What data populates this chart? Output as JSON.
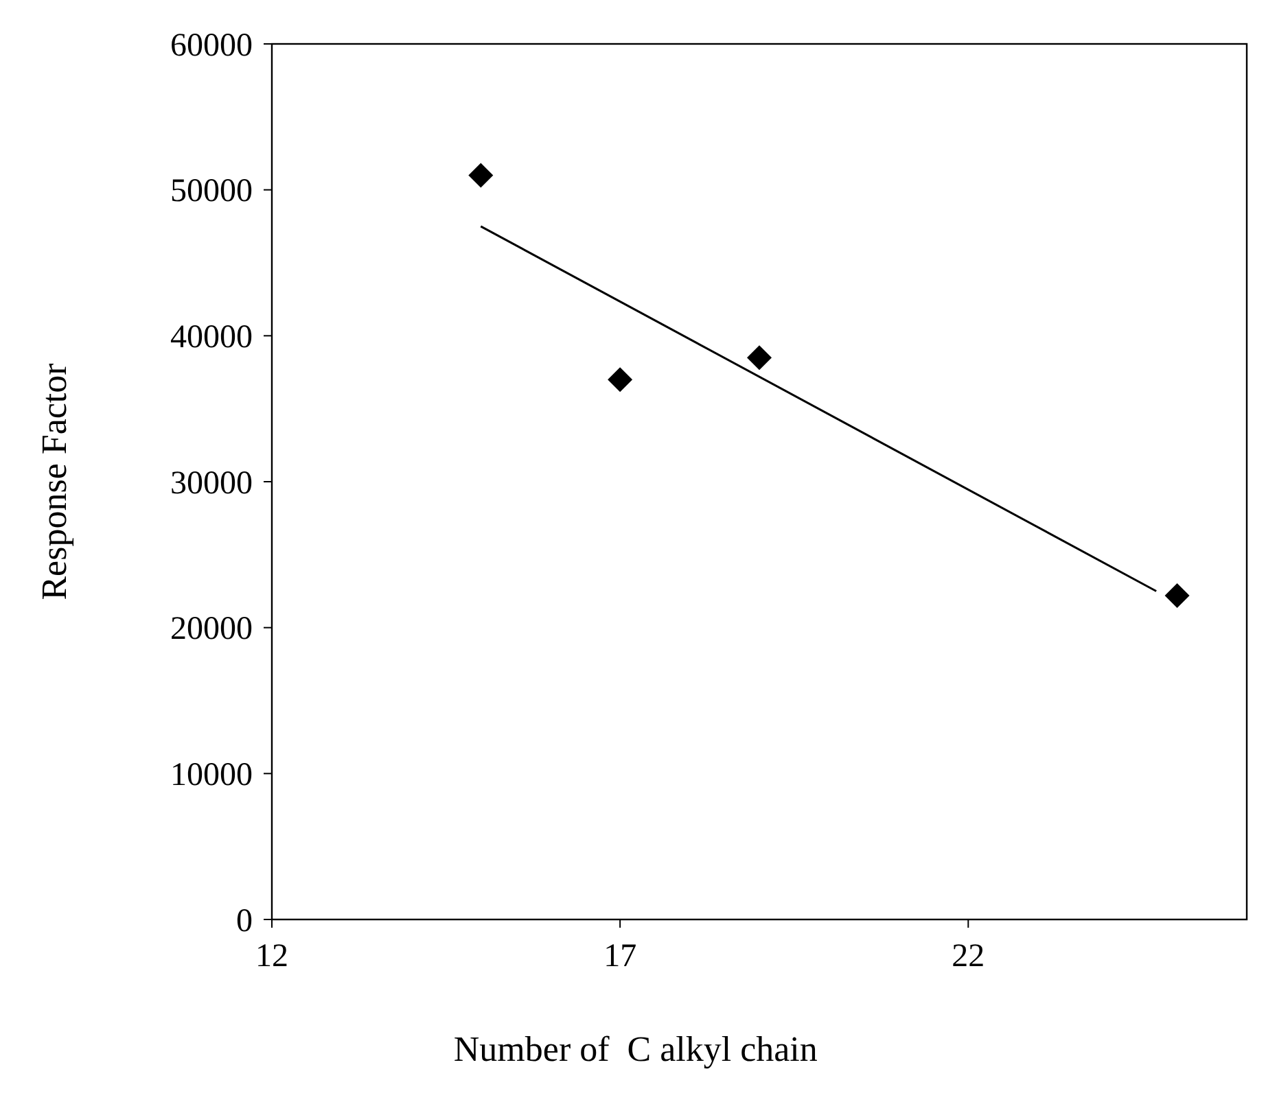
{
  "chart_data": {
    "type": "scatter",
    "xlabel": "Number of  C alkyl chain",
    "ylabel": "Response Factor",
    "marker": "diamond",
    "grid": false,
    "xlim": [
      12,
      26
    ],
    "xticks": [
      12,
      17,
      22
    ],
    "ylim": [
      0,
      60000
    ],
    "yticks": [
      0,
      10000,
      20000,
      30000,
      40000,
      50000,
      60000
    ],
    "series": [
      {
        "color": "#000000",
        "x": [
          15,
          17,
          19,
          25
        ],
        "values": [
          51000,
          37000,
          38500,
          22200
        ]
      },
      {
        "type": "line",
        "color": "#000000",
        "marker": "none",
        "x": [
          15,
          24.7
        ],
        "values": [
          47500,
          22500
        ]
      }
    ]
  }
}
